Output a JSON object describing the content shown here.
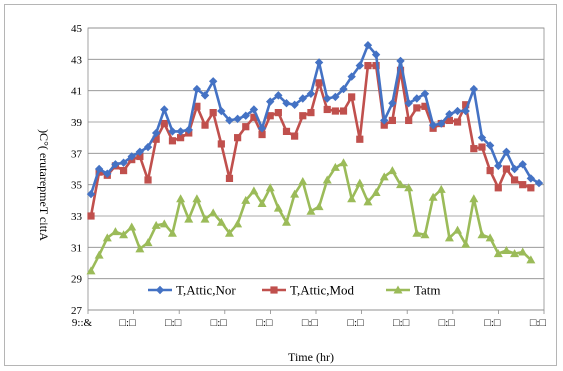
{
  "chart_data": {
    "type": "line",
    "xlabel": "Time (hr)",
    "ylabel": ")C°( erutarepmeT cittA",
    "ylim": [
      27,
      45
    ],
    "yticks": [
      "27",
      "29",
      "31",
      "33",
      "35",
      "37",
      "39",
      "41",
      "43",
      "45"
    ],
    "xtick_labels": [
      "9::&",
      "□:□",
      "□:□",
      "□:□",
      "□:□",
      "□:□",
      "□:□",
      "□:□",
      "□:□",
      "□:□",
      "□:□"
    ],
    "grid": true,
    "legend_position": "bottom-inside",
    "series": [
      {
        "name": "T,Attic,Nor",
        "color": "#4472C4",
        "marker": "diamond",
        "values": [
          34.4,
          36.0,
          35.7,
          36.3,
          36.4,
          36.8,
          37.1,
          37.4,
          38.3,
          39.8,
          38.4,
          38.4,
          38.5,
          41.1,
          40.7,
          41.6,
          39.7,
          39.1,
          39.2,
          39.4,
          39.8,
          38.6,
          40.3,
          40.7,
          40.2,
          40.1,
          40.5,
          40.8,
          42.8,
          40.5,
          40.6,
          41.1,
          41.9,
          42.6,
          43.9,
          43.3,
          39.1,
          40.2,
          42.9,
          40.2,
          40.5,
          40.8,
          38.8,
          38.9,
          39.5,
          39.7,
          39.7,
          41.1,
          38.0,
          37.5,
          36.2,
          37.1,
          36.0,
          36.3,
          35.4,
          35.1
        ]
      },
      {
        "name": "T,Attic,Mod",
        "color": "#C0504D",
        "marker": "square",
        "values": [
          33.0,
          35.8,
          35.6,
          36.2,
          35.9,
          36.6,
          36.8,
          35.3,
          37.9,
          38.9,
          37.8,
          38.0,
          38.3,
          40.0,
          38.8,
          39.6,
          37.6,
          35.4,
          38.0,
          38.7,
          39.3,
          38.2,
          39.4,
          39.6,
          38.4,
          38.1,
          39.4,
          39.6,
          41.5,
          39.8,
          39.7,
          39.7,
          40.6,
          37.9,
          42.6,
          42.6,
          38.8,
          39.1,
          42.3,
          39.1,
          39.9,
          40.0,
          38.6,
          38.9,
          39.1,
          39.0,
          40.1,
          37.3,
          37.4,
          35.9,
          34.8,
          36.0,
          35.3,
          35.0,
          34.8
        ]
      },
      {
        "name": "Tatm",
        "color": "#9BBB59",
        "marker": "triangle",
        "values": [
          29.5,
          30.5,
          31.6,
          32.0,
          31.8,
          32.3,
          30.9,
          31.3,
          32.4,
          32.5,
          31.9,
          34.1,
          32.8,
          34.1,
          32.8,
          33.2,
          32.6,
          31.9,
          32.5,
          34.0,
          34.6,
          33.8,
          34.8,
          33.5,
          32.6,
          34.4,
          35.2,
          33.3,
          33.6,
          35.3,
          36.1,
          36.4,
          34.1,
          35.1,
          33.9,
          34.5,
          35.5,
          35.9,
          35.0,
          34.8,
          31.9,
          31.8,
          34.2,
          34.7,
          31.6,
          32.1,
          31.2,
          34.1,
          31.8,
          31.6,
          30.6,
          30.8,
          30.6,
          30.7,
          30.2
        ]
      }
    ]
  }
}
